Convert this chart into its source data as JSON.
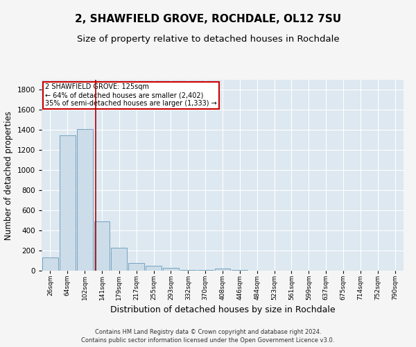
{
  "title1": "2, SHAWFIELD GROVE, ROCHDALE, OL12 7SU",
  "title2": "Size of property relative to detached houses in Rochdale",
  "xlabel": "Distribution of detached houses by size in Rochdale",
  "ylabel": "Number of detached properties",
  "footer1": "Contains HM Land Registry data © Crown copyright and database right 2024.",
  "footer2": "Contains public sector information licensed under the Open Government Licence v3.0.",
  "bin_labels": [
    "26sqm",
    "64sqm",
    "102sqm",
    "141sqm",
    "179sqm",
    "217sqm",
    "255sqm",
    "293sqm",
    "332sqm",
    "370sqm",
    "408sqm",
    "446sqm",
    "484sqm",
    "523sqm",
    "561sqm",
    "599sqm",
    "637sqm",
    "675sqm",
    "714sqm",
    "752sqm",
    "790sqm"
  ],
  "bar_heights": [
    130,
    1350,
    1410,
    490,
    225,
    75,
    45,
    25,
    10,
    5,
    20,
    5,
    0,
    0,
    0,
    0,
    0,
    0,
    0,
    0,
    0
  ],
  "bar_color": "#ccdce8",
  "bar_edge_color": "#6699bb",
  "red_line_x": 2.62,
  "annotation_title": "2 SHAWFIELD GROVE: 125sqm",
  "annotation_line1": "← 64% of detached houses are smaller (2,402)",
  "annotation_line2": "35% of semi-detached houses are larger (1,333) →",
  "annotation_box_color": "#ffffff",
  "annotation_box_edge": "#cc0000",
  "ylim": [
    0,
    1900
  ],
  "yticks": [
    0,
    200,
    400,
    600,
    800,
    1000,
    1200,
    1400,
    1600,
    1800
  ],
  "background_color": "#dde8f0",
  "grid_color": "#ffffff",
  "title1_fontsize": 11,
  "title2_fontsize": 9.5,
  "xlabel_fontsize": 9,
  "ylabel_fontsize": 8.5,
  "footer_fontsize": 6
}
